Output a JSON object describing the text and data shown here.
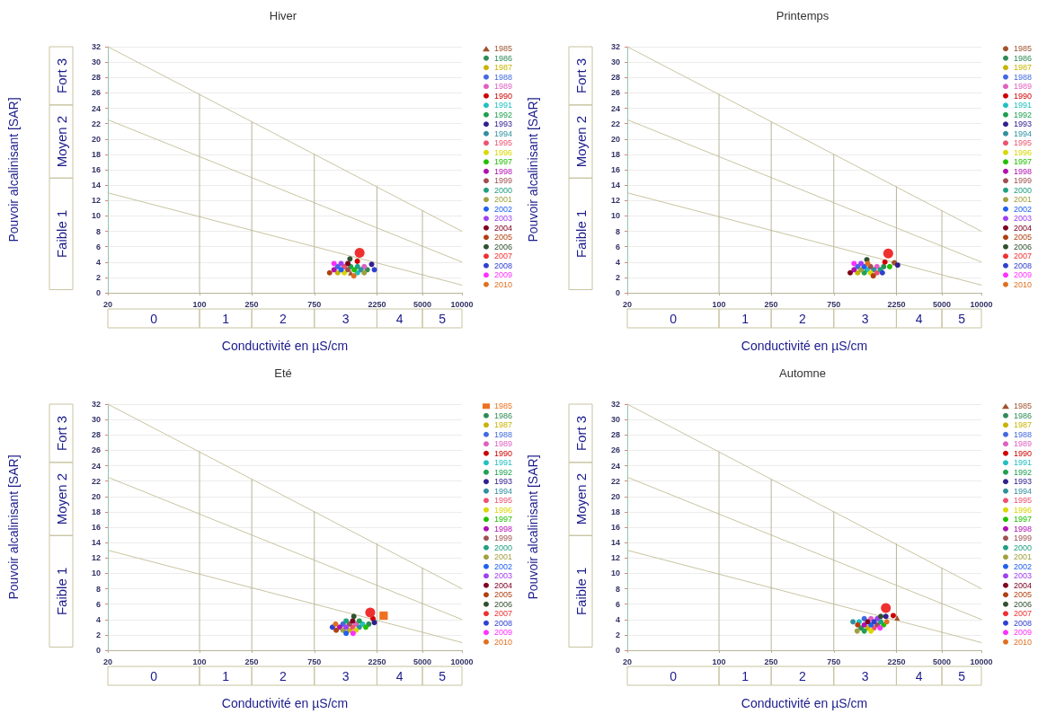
{
  "chart_data": [
    {
      "type": "bubble",
      "title": "Hiver",
      "xlabel": "Conductivité en µS/cm",
      "ylabel": "Pouvoir alcalinisant [SAR]",
      "log": "x",
      "xlim": [
        20,
        10000
      ],
      "xticks": [
        20,
        100,
        250,
        750,
        2250,
        5000,
        10000
      ],
      "ylim": [
        0,
        32
      ],
      "yticks": [
        0,
        2,
        4,
        6,
        8,
        10,
        12,
        14,
        16,
        18,
        20,
        22,
        24,
        26,
        28,
        30,
        32
      ],
      "grid": "y",
      "legend": "right",
      "marker": "circle",
      "annotations": [
        "0",
        "1",
        "2",
        "3",
        "4",
        "5",
        "Faible 1",
        "Moyen 2",
        "Fort 3"
      ],
      "series": [
        {
          "type": "line",
          "marker": "none",
          "color": "#c8c4a0",
          "x": [
            20,
            10000
          ],
          "values": [
            32,
            8
          ]
        },
        {
          "type": "line",
          "marker": "none",
          "color": "#c8c4a0",
          "x": [
            20,
            10000
          ],
          "values": [
            22.5,
            4
          ]
        },
        {
          "type": "line",
          "marker": "none",
          "color": "#c8c4a0",
          "x": [
            20,
            10000
          ],
          "values": [
            13,
            1
          ]
        },
        {
          "type": "line",
          "marker": "none",
          "color": "#b8b498",
          "x": [
            100,
            100
          ],
          "values": [
            0,
            25.8
          ]
        },
        {
          "type": "line",
          "marker": "none",
          "color": "#b8b498",
          "x": [
            250,
            250
          ],
          "values": [
            0,
            22.2
          ]
        },
        {
          "type": "line",
          "marker": "none",
          "color": "#b8b498",
          "x": [
            750,
            750
          ],
          "values": [
            0,
            18
          ]
        },
        {
          "type": "line",
          "marker": "none",
          "color": "#b8b498",
          "x": [
            2250,
            2250
          ],
          "values": [
            0,
            13.8
          ]
        },
        {
          "type": "line",
          "marker": "none",
          "color": "#b8b498",
          "x": [
            5000,
            5000
          ],
          "values": [
            0,
            10.7
          ]
        },
        {
          "name": "1985",
          "color": "#a0522d",
          "marker": "triangle",
          "x": [
            1420
          ],
          "values": [
            2.6
          ],
          "sizes": [
            0.3
          ]
        },
        {
          "name": "1986",
          "color": "#2e8b57",
          "x": [
            1900
          ],
          "values": [
            3.0
          ],
          "sizes": [
            0.3
          ]
        },
        {
          "name": "1987",
          "color": "#c8b400",
          "x": [
            1130
          ],
          "values": [
            2.6
          ],
          "sizes": [
            0.3
          ]
        },
        {
          "name": "1988",
          "color": "#4169e1",
          "x": [
            1130
          ],
          "values": [
            3.4
          ],
          "sizes": [
            0.3
          ]
        },
        {
          "name": "1989",
          "color": "#e060c0",
          "x": [
            1800
          ],
          "values": [
            3.4
          ],
          "sizes": [
            0.3
          ]
        },
        {
          "name": "1990",
          "color": "#d00000",
          "x": [
            1595
          ],
          "values": [
            4.1
          ],
          "sizes": [
            0.3
          ]
        },
        {
          "name": "1991",
          "color": "#20c0c0",
          "x": [
            1600
          ],
          "values": [
            2.6
          ],
          "sizes": [
            0.3
          ]
        },
        {
          "name": "1992",
          "color": "#20a050",
          "x": [
            1420
          ],
          "values": [
            3.4
          ],
          "sizes": [
            0.3
          ]
        },
        {
          "name": "1993",
          "color": "#302090",
          "x": [
            2050
          ],
          "values": [
            3.7
          ],
          "sizes": [
            0.3
          ]
        },
        {
          "name": "1994",
          "color": "#3090a0",
          "x": [
            1700
          ],
          "values": [
            3.0
          ],
          "sizes": [
            0.3
          ]
        },
        {
          "name": "1995",
          "color": "#f05070",
          "x": [
            1270
          ],
          "values": [
            3.4
          ],
          "sizes": [
            0.3
          ]
        },
        {
          "name": "1996",
          "color": "#d8d800",
          "x": [
            1270
          ],
          "values": [
            2.6
          ],
          "sizes": [
            0.3
          ]
        },
        {
          "name": "1997",
          "color": "#20c000",
          "x": [
            1510
          ],
          "values": [
            3.0
          ],
          "sizes": [
            0.3
          ]
        },
        {
          "name": "1998",
          "color": "#b010b0",
          "x": [
            1060
          ],
          "values": [
            3.0
          ],
          "sizes": [
            0.3
          ]
        },
        {
          "name": "1999",
          "color": "#a05050",
          "x": [
            1350
          ],
          "values": [
            3.0
          ],
          "sizes": [
            0.3
          ]
        },
        {
          "name": "2000",
          "color": "#20a080",
          "x": [
            1600
          ],
          "values": [
            3.4
          ],
          "sizes": [
            0.3
          ]
        },
        {
          "name": "2001",
          "color": "#a0a040",
          "x": [
            1800
          ],
          "values": [
            2.6
          ],
          "sizes": [
            0.3
          ]
        },
        {
          "name": "2002",
          "color": "#2060f0",
          "x": [
            1200
          ],
          "values": [
            3.0
          ],
          "sizes": [
            0.3
          ]
        },
        {
          "name": "2003",
          "color": "#a040f0",
          "x": [
            1200
          ],
          "values": [
            3.8
          ],
          "sizes": [
            0.3
          ]
        },
        {
          "name": "2004",
          "color": "#800020",
          "x": [
            1350
          ],
          "values": [
            3.8
          ],
          "sizes": [
            0.3
          ]
        },
        {
          "name": "2005",
          "color": "#b04010",
          "x": [
            980
          ],
          "values": [
            2.6
          ],
          "sizes": [
            0.3
          ]
        },
        {
          "name": "2006",
          "color": "#305030",
          "x": [
            1400
          ],
          "values": [
            4.4
          ],
          "sizes": [
            0.3
          ]
        },
        {
          "name": "2007",
          "color": "#f03030",
          "x": [
            1660
          ],
          "values": [
            5.2
          ],
          "sizes": [
            1
          ]
        },
        {
          "name": "2008",
          "color": "#3040d0",
          "x": [
            2150
          ],
          "values": [
            3.0
          ],
          "sizes": [
            0.3
          ]
        },
        {
          "name": "2009",
          "color": "#ff30ff",
          "x": [
            1060
          ],
          "values": [
            3.8
          ],
          "sizes": [
            0.3
          ]
        },
        {
          "name": "2010",
          "color": "#e07020",
          "x": [
            1500
          ],
          "values": [
            2.2
          ],
          "sizes": [
            0.3
          ]
        }
      ]
    },
    {
      "type": "bubble",
      "title": "Printemps",
      "xlabel": "Conductivité en µS/cm",
      "ylabel": "Pouvoir alcalinisant [SAR]",
      "log": "x",
      "xlim": [
        20,
        10000
      ],
      "xticks": [
        20,
        100,
        250,
        750,
        2250,
        5000,
        10000
      ],
      "ylim": [
        0,
        32
      ],
      "yticks": [
        0,
        2,
        4,
        6,
        8,
        10,
        12,
        14,
        16,
        18,
        20,
        22,
        24,
        26,
        28,
        30,
        32
      ],
      "grid": "y",
      "legend": "right",
      "marker": "circle",
      "annotations": [
        "0",
        "1",
        "2",
        "3",
        "4",
        "5",
        "Faible 1",
        "Moyen 2",
        "Fort 3"
      ],
      "series": [
        {
          "type": "line",
          "marker": "none",
          "color": "#c8c4a0",
          "x": [
            20,
            10000
          ],
          "values": [
            32,
            8
          ]
        },
        {
          "type": "line",
          "marker": "none",
          "color": "#c8c4a0",
          "x": [
            20,
            10000
          ],
          "values": [
            22.5,
            4
          ]
        },
        {
          "type": "line",
          "marker": "none",
          "color": "#c8c4a0",
          "x": [
            20,
            10000
          ],
          "values": [
            13,
            1
          ]
        },
        {
          "type": "line",
          "marker": "none",
          "color": "#b8b498",
          "x": [
            100,
            100
          ],
          "values": [
            0,
            25.8
          ]
        },
        {
          "type": "line",
          "marker": "none",
          "color": "#b8b498",
          "x": [
            250,
            250
          ],
          "values": [
            0,
            22.2
          ]
        },
        {
          "type": "line",
          "marker": "none",
          "color": "#b8b498",
          "x": [
            750,
            750
          ],
          "values": [
            0,
            18
          ]
        },
        {
          "type": "line",
          "marker": "none",
          "color": "#b8b498",
          "x": [
            2250,
            2250
          ],
          "values": [
            0,
            13.8
          ]
        },
        {
          "type": "line",
          "marker": "none",
          "color": "#b8b498",
          "x": [
            5000,
            5000
          ],
          "values": [
            0,
            10.7
          ]
        },
        {
          "name": "1985",
          "color": "#a0522d",
          "x": [
            2170
          ],
          "values": [
            3.9
          ],
          "sizes": [
            0.3
          ]
        },
        {
          "name": "1986",
          "color": "#2e8b57",
          "x": [
            1800
          ],
          "values": [
            3.4
          ],
          "sizes": [
            0.3
          ]
        },
        {
          "name": "1987",
          "color": "#c8b400",
          "x": [
            1140
          ],
          "values": [
            2.6
          ],
          "sizes": [
            0.3
          ]
        },
        {
          "name": "1988",
          "color": "#4169e1",
          "x": [
            1140
          ],
          "values": [
            3.4
          ],
          "sizes": [
            0.3
          ]
        },
        {
          "name": "1989",
          "color": "#e060c0",
          "x": [
            1600
          ],
          "values": [
            3.4
          ],
          "sizes": [
            0.3
          ]
        },
        {
          "name": "1990",
          "color": "#d00000",
          "x": [
            1840
          ],
          "values": [
            4.0
          ],
          "sizes": [
            0.3
          ]
        },
        {
          "name": "1991",
          "color": "#20c0c0",
          "x": [
            1350
          ],
          "values": [
            3.0
          ],
          "sizes": [
            0.3
          ]
        },
        {
          "name": "1992",
          "color": "#20a050",
          "x": [
            1280
          ],
          "values": [
            2.6
          ],
          "sizes": [
            0.3
          ]
        },
        {
          "name": "1993",
          "color": "#302090",
          "x": [
            2300
          ],
          "values": [
            3.6
          ],
          "sizes": [
            0.3
          ]
        },
        {
          "name": "1994",
          "color": "#3090a0",
          "x": [
            1510
          ],
          "values": [
            3.0
          ],
          "sizes": [
            0.3
          ]
        },
        {
          "name": "1995",
          "color": "#f05070",
          "x": [
            1600
          ],
          "values": [
            2.6
          ],
          "sizes": [
            0.3
          ]
        },
        {
          "name": "1996",
          "color": "#d8d800",
          "x": [
            1430
          ],
          "values": [
            2.6
          ],
          "sizes": [
            0.3
          ]
        },
        {
          "name": "1997",
          "color": "#20c000",
          "x": [
            2000
          ],
          "values": [
            3.4
          ],
          "sizes": [
            0.3
          ]
        },
        {
          "name": "1998",
          "color": "#b010b0",
          "x": [
            1070
          ],
          "values": [
            3.0
          ],
          "sizes": [
            0.3
          ]
        },
        {
          "name": "1999",
          "color": "#a05050",
          "x": [
            1430
          ],
          "values": [
            3.4
          ],
          "sizes": [
            0.3
          ]
        },
        {
          "name": "2000",
          "color": "#20a080",
          "x": [
            1700
          ],
          "values": [
            3.0
          ],
          "sizes": [
            0.3
          ]
        },
        {
          "name": "2001",
          "color": "#a0a040",
          "x": [
            1210
          ],
          "values": [
            3.0
          ],
          "sizes": [
            0.3
          ]
        },
        {
          "name": "2002",
          "color": "#2060f0",
          "x": [
            1280
          ],
          "values": [
            3.4
          ],
          "sizes": [
            0.3
          ]
        },
        {
          "name": "2003",
          "color": "#a040f0",
          "x": [
            1210
          ],
          "values": [
            3.8
          ],
          "sizes": [
            0.3
          ]
        },
        {
          "name": "2004",
          "color": "#800020",
          "x": [
            1000
          ],
          "values": [
            2.6
          ],
          "sizes": [
            0.3
          ]
        },
        {
          "name": "2005",
          "color": "#b04010",
          "x": [
            1500
          ],
          "values": [
            2.2
          ],
          "sizes": [
            0.3
          ]
        },
        {
          "name": "2006",
          "color": "#305030",
          "x": [
            1340
          ],
          "values": [
            4.3
          ],
          "sizes": [
            0.3
          ]
        },
        {
          "name": "2007",
          "color": "#f03030",
          "x": [
            1950
          ],
          "values": [
            5.1
          ],
          "sizes": [
            1
          ]
        },
        {
          "name": "2008",
          "color": "#3040d0",
          "x": [
            1760
          ],
          "values": [
            2.6
          ],
          "sizes": [
            0.3
          ]
        },
        {
          "name": "2009",
          "color": "#ff30ff",
          "x": [
            1070
          ],
          "values": [
            3.8
          ],
          "sizes": [
            0.3
          ]
        },
        {
          "name": "2010",
          "color": "#e07020",
          "x": [
            1360
          ],
          "values": [
            3.8
          ],
          "sizes": [
            0.3
          ]
        }
      ]
    },
    {
      "type": "bubble",
      "title": "Eté",
      "xlabel": "Conductivité en µS/cm",
      "ylabel": "Pouvoir alcalinisant [SAR]",
      "log": "x",
      "xlim": [
        20,
        10000
      ],
      "xticks": [
        20,
        100,
        250,
        750,
        2250,
        5000,
        10000
      ],
      "ylim": [
        0,
        32
      ],
      "yticks": [
        0,
        2,
        4,
        6,
        8,
        10,
        12,
        14,
        16,
        18,
        20,
        22,
        24,
        26,
        28,
        30,
        32
      ],
      "grid": "y",
      "legend": "right",
      "marker": "circle",
      "annotations": [
        "0",
        "1",
        "2",
        "3",
        "4",
        "5",
        "Faible 1",
        "Moyen 2",
        "Fort 3"
      ],
      "series": [
        {
          "type": "line",
          "marker": "none",
          "color": "#c8c4a0",
          "x": [
            20,
            10000
          ],
          "values": [
            32,
            8
          ]
        },
        {
          "type": "line",
          "marker": "none",
          "color": "#c8c4a0",
          "x": [
            20,
            10000
          ],
          "values": [
            22.5,
            4
          ]
        },
        {
          "type": "line",
          "marker": "none",
          "color": "#c8c4a0",
          "x": [
            20,
            10000
          ],
          "values": [
            13,
            1
          ]
        },
        {
          "type": "line",
          "marker": "none",
          "color": "#b8b498",
          "x": [
            100,
            100
          ],
          "values": [
            0,
            25.8
          ]
        },
        {
          "type": "line",
          "marker": "none",
          "color": "#b8b498",
          "x": [
            250,
            250
          ],
          "values": [
            0,
            22.2
          ]
        },
        {
          "type": "line",
          "marker": "none",
          "color": "#b8b498",
          "x": [
            750,
            750
          ],
          "values": [
            0,
            18
          ]
        },
        {
          "type": "line",
          "marker": "none",
          "color": "#b8b498",
          "x": [
            2250,
            2250
          ],
          "values": [
            0,
            13.8
          ]
        },
        {
          "type": "line",
          "marker": "none",
          "color": "#b8b498",
          "x": [
            5000,
            5000
          ],
          "values": [
            0,
            10.7
          ]
        },
        {
          "name": "1985",
          "color": "#f07020",
          "marker": "square",
          "x": [
            2530
          ],
          "values": [
            4.5
          ],
          "sizes": [
            0.7
          ]
        },
        {
          "name": "1986",
          "color": "#2e8b57",
          "x": [
            1950
          ],
          "values": [
            3.4
          ],
          "sizes": [
            0.3
          ]
        },
        {
          "name": "1987",
          "color": "#c8b400",
          "x": [
            1390
          ],
          "values": [
            2.6
          ],
          "sizes": [
            0.3
          ]
        },
        {
          "name": "1988",
          "color": "#4169e1",
          "x": [
            1240
          ],
          "values": [
            3.4
          ],
          "sizes": [
            0.3
          ]
        },
        {
          "name": "1989",
          "color": "#e060c0",
          "x": [
            1560
          ],
          "values": [
            3.4
          ],
          "sizes": [
            0.3
          ]
        },
        {
          "name": "1990",
          "color": "#d00000",
          "x": [
            2100
          ],
          "values": [
            4.1
          ],
          "sizes": [
            0.3
          ]
        },
        {
          "name": "1991",
          "color": "#20c0c0",
          "x": [
            1750
          ],
          "values": [
            3.4
          ],
          "sizes": [
            0.3
          ]
        },
        {
          "name": "1992",
          "color": "#20a050",
          "x": [
            1650
          ],
          "values": [
            3.8
          ],
          "sizes": [
            0.3
          ]
        },
        {
          "name": "1993",
          "color": "#302090",
          "x": [
            2150
          ],
          "values": [
            3.6
          ],
          "sizes": [
            0.3
          ]
        },
        {
          "name": "1994",
          "color": "#3090a0",
          "x": [
            1650
          ],
          "values": [
            3.0
          ],
          "sizes": [
            0.3
          ]
        },
        {
          "name": "1995",
          "color": "#f05070",
          "x": [
            1470
          ],
          "values": [
            3.0
          ],
          "sizes": [
            0.3
          ]
        },
        {
          "name": "1996",
          "color": "#d8d800",
          "x": [
            1560
          ],
          "values": [
            2.6
          ],
          "sizes": [
            0.3
          ]
        },
        {
          "name": "1997",
          "color": "#20c000",
          "x": [
            1850
          ],
          "values": [
            3.0
          ],
          "sizes": [
            0.3
          ]
        },
        {
          "name": "1998",
          "color": "#b010b0",
          "x": [
            1170
          ],
          "values": [
            3.0
          ],
          "sizes": [
            0.3
          ]
        },
        {
          "name": "1999",
          "color": "#a05050",
          "x": [
            1390
          ],
          "values": [
            3.4
          ],
          "sizes": [
            0.3
          ]
        },
        {
          "name": "2000",
          "color": "#20a080",
          "x": [
            1310
          ],
          "values": [
            3.8
          ],
          "sizes": [
            0.3
          ]
        },
        {
          "name": "2001",
          "color": "#a0a040",
          "x": [
            1240
          ],
          "values": [
            2.6
          ],
          "sizes": [
            0.3
          ]
        },
        {
          "name": "2002",
          "color": "#2060f0",
          "x": [
            1310
          ],
          "values": [
            2.2
          ],
          "sizes": [
            0.3
          ]
        },
        {
          "name": "2003",
          "color": "#a040f0",
          "x": [
            1310
          ],
          "values": [
            3.0
          ],
          "sizes": [
            0.3
          ]
        },
        {
          "name": "2004",
          "color": "#800020",
          "x": [
            1470
          ],
          "values": [
            3.8
          ],
          "sizes": [
            0.3
          ]
        },
        {
          "name": "2005",
          "color": "#b04010",
          "x": [
            1100
          ],
          "values": [
            2.6
          ],
          "sizes": [
            0.3
          ]
        },
        {
          "name": "2006",
          "color": "#305030",
          "x": [
            1500
          ],
          "values": [
            4.4
          ],
          "sizes": [
            0.3
          ]
        },
        {
          "name": "2007",
          "color": "#f03030",
          "x": [
            2000
          ],
          "values": [
            4.9
          ],
          "sizes": [
            1
          ]
        },
        {
          "name": "2008",
          "color": "#3040d0",
          "x": [
            1030
          ],
          "values": [
            3.0
          ],
          "sizes": [
            0.3
          ]
        },
        {
          "name": "2009",
          "color": "#ff30ff",
          "x": [
            1480
          ],
          "values": [
            2.2
          ],
          "sizes": [
            0.3
          ]
        },
        {
          "name": "2010",
          "color": "#e07020",
          "x": [
            1090
          ],
          "values": [
            3.4
          ],
          "sizes": [
            0.3
          ]
        }
      ]
    },
    {
      "type": "bubble",
      "title": "Automne",
      "xlabel": "Conductivité en µS/cm",
      "ylabel": "Pouvoir alcalinisant [SAR]",
      "log": "x",
      "xlim": [
        20,
        10000
      ],
      "xticks": [
        20,
        100,
        250,
        750,
        2250,
        5000,
        10000
      ],
      "ylim": [
        0,
        32
      ],
      "yticks": [
        0,
        2,
        4,
        6,
        8,
        10,
        12,
        14,
        16,
        18,
        20,
        22,
        24,
        26,
        28,
        30,
        32
      ],
      "grid": "y",
      "legend": "right",
      "marker": "circle",
      "annotations": [
        "0",
        "1",
        "2",
        "3",
        "4",
        "5",
        "Faible 1",
        "Moyen 2",
        "Fort 3"
      ],
      "series": [
        {
          "type": "line",
          "marker": "none",
          "color": "#c8c4a0",
          "x": [
            20,
            10000
          ],
          "values": [
            32,
            8
          ]
        },
        {
          "type": "line",
          "marker": "none",
          "color": "#c8c4a0",
          "x": [
            20,
            10000
          ],
          "values": [
            22.5,
            4
          ]
        },
        {
          "type": "line",
          "marker": "none",
          "color": "#c8c4a0",
          "x": [
            20,
            10000
          ],
          "values": [
            13,
            1
          ]
        },
        {
          "type": "line",
          "marker": "none",
          "color": "#b8b498",
          "x": [
            100,
            100
          ],
          "values": [
            0,
            25.8
          ]
        },
        {
          "type": "line",
          "marker": "none",
          "color": "#b8b498",
          "x": [
            250,
            250
          ],
          "values": [
            0,
            22.2
          ]
        },
        {
          "type": "line",
          "marker": "none",
          "color": "#b8b498",
          "x": [
            750,
            750
          ],
          "values": [
            0,
            18
          ]
        },
        {
          "type": "line",
          "marker": "none",
          "color": "#b8b498",
          "x": [
            2250,
            2250
          ],
          "values": [
            0,
            13.8
          ]
        },
        {
          "type": "line",
          "marker": "none",
          "color": "#b8b498",
          "x": [
            5000,
            5000
          ],
          "values": [
            0,
            10.7
          ]
        },
        {
          "name": "1985",
          "color": "#a0522d",
          "marker": "triangle",
          "x": [
            2280
          ],
          "values": [
            4.2
          ],
          "sizes": [
            0.3
          ]
        },
        {
          "name": "1986",
          "color": "#2e8b57",
          "x": [
            1210
          ],
          "values": [
            2.9
          ],
          "sizes": [
            0.3
          ]
        },
        {
          "name": "1987",
          "color": "#c8b400",
          "x": [
            1360
          ],
          "values": [
            2.9
          ],
          "sizes": [
            0.3
          ]
        },
        {
          "name": "1988",
          "color": "#4169e1",
          "x": [
            1280
          ],
          "values": [
            4.1
          ],
          "sizes": [
            0.3
          ]
        },
        {
          "name": "1989",
          "color": "#e060c0",
          "x": [
            1440
          ],
          "values": [
            4.1
          ],
          "sizes": [
            0.3
          ]
        },
        {
          "name": "1990",
          "color": "#d00000",
          "x": [
            2130
          ],
          "values": [
            4.5
          ],
          "sizes": [
            0.3
          ]
        },
        {
          "name": "1991",
          "color": "#20c0c0",
          "x": [
            1170
          ],
          "values": [
            3.7
          ],
          "sizes": [
            0.3
          ]
        },
        {
          "name": "1992",
          "color": "#20a050",
          "x": [
            1280
          ],
          "values": [
            2.5
          ],
          "sizes": [
            0.3
          ]
        },
        {
          "name": "1993",
          "color": "#302090",
          "x": [
            1870
          ],
          "values": [
            4.4
          ],
          "sizes": [
            0.3
          ]
        },
        {
          "name": "1994",
          "color": "#3090a0",
          "x": [
            1050
          ],
          "values": [
            3.7
          ],
          "sizes": [
            0.3
          ]
        },
        {
          "name": "1995",
          "color": "#f05070",
          "x": [
            1520
          ],
          "values": [
            2.9
          ],
          "sizes": [
            0.3
          ]
        },
        {
          "name": "1996",
          "color": "#d8d800",
          "x": [
            1440
          ],
          "values": [
            2.5
          ],
          "sizes": [
            0.3
          ]
        },
        {
          "name": "1997",
          "color": "#20c000",
          "x": [
            1800
          ],
          "values": [
            3.3
          ],
          "sizes": [
            0.3
          ]
        },
        {
          "name": "1998",
          "color": "#b010b0",
          "x": [
            1280
          ],
          "values": [
            3.3
          ],
          "sizes": [
            0.3
          ]
        },
        {
          "name": "1999",
          "color": "#a05050",
          "x": [
            1610
          ],
          "values": [
            3.3
          ],
          "sizes": [
            0.3
          ]
        },
        {
          "name": "2000",
          "color": "#20a080",
          "x": [
            1710
          ],
          "values": [
            3.7
          ],
          "sizes": [
            0.3
          ]
        },
        {
          "name": "2001",
          "color": "#a0a040",
          "x": [
            1130
          ],
          "values": [
            2.5
          ],
          "sizes": [
            0.3
          ]
        },
        {
          "name": "2002",
          "color": "#2060f0",
          "x": [
            1440
          ],
          "values": [
            3.3
          ],
          "sizes": [
            0.3
          ]
        },
        {
          "name": "2003",
          "color": "#a040f0",
          "x": [
            1610
          ],
          "values": [
            4.1
          ],
          "sizes": [
            0.3
          ]
        },
        {
          "name": "2004",
          "color": "#800020",
          "x": [
            1360
          ],
          "values": [
            3.7
          ],
          "sizes": [
            0.3
          ]
        },
        {
          "name": "2005",
          "color": "#b04010",
          "x": [
            1140
          ],
          "values": [
            3.3
          ],
          "sizes": [
            0.3
          ]
        },
        {
          "name": "2006",
          "color": "#305030",
          "x": [
            1710
          ],
          "values": [
            4.4
          ],
          "sizes": [
            0.3
          ]
        },
        {
          "name": "2007",
          "color": "#f03030",
          "x": [
            1870
          ],
          "values": [
            5.5
          ],
          "sizes": [
            1
          ]
        },
        {
          "name": "2008",
          "color": "#3040d0",
          "x": [
            1520
          ],
          "values": [
            3.7
          ],
          "sizes": [
            0.3
          ]
        },
        {
          "name": "2009",
          "color": "#ff30ff",
          "x": [
            1690
          ],
          "values": [
            2.9
          ],
          "sizes": [
            0.3
          ]
        },
        {
          "name": "2010",
          "color": "#e07020",
          "x": [
            1900
          ],
          "values": [
            3.7
          ],
          "sizes": [
            0.3
          ]
        }
      ]
    }
  ]
}
